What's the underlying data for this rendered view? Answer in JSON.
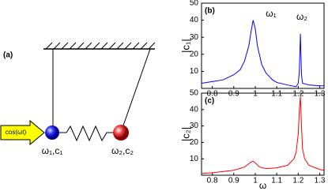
{
  "diagram": {
    "panel_label": "(a)",
    "force_label": "cos(ωt)",
    "mass1_label": "ω₁,c₁",
    "mass2_label": "ω₂,c₂"
  },
  "chart_data": [
    {
      "type": "line",
      "panel_label": "(b)",
      "y_label": "|c₁|",
      "annotations": [
        "ω₁",
        "ω₂"
      ],
      "x": [
        0.75,
        0.8,
        0.85,
        0.9,
        0.93,
        0.95,
        0.97,
        0.98,
        0.99,
        1.0,
        1.01,
        1.03,
        1.05,
        1.08,
        1.1,
        1.15,
        1.19,
        1.2,
        1.205,
        1.21,
        1.215,
        1.22,
        1.25,
        1.3,
        1.32
      ],
      "series": [
        {
          "name": "|c₁|",
          "color": "#0000ff",
          "values": [
            3,
            4,
            5,
            8,
            11,
            16,
            25,
            33,
            40,
            35,
            25,
            14,
            9,
            5,
            3.5,
            2,
            1,
            3,
            10,
            32,
            8,
            3,
            2,
            1.5,
            1.5
          ]
        }
      ],
      "xlim": [
        0.75,
        1.32
      ],
      "ylim": [
        0,
        50
      ],
      "xticks": [
        0.8,
        0.9,
        1,
        1.1,
        1.2,
        1.3
      ],
      "yticks": [
        10,
        20,
        30,
        40,
        50
      ],
      "grid": false
    },
    {
      "type": "line",
      "panel_label": "(c)",
      "y_label": "|c₂|",
      "x_label": "ω",
      "x": [
        0.75,
        0.8,
        0.9,
        0.95,
        0.98,
        0.99,
        1.0,
        1.02,
        1.05,
        1.1,
        1.15,
        1.18,
        1.19,
        1.2,
        1.205,
        1.21,
        1.215,
        1.22,
        1.23,
        1.25,
        1.3,
        1.32
      ],
      "series": [
        {
          "name": "|c₂|",
          "color": "#ff0000",
          "values": [
            1,
            1.5,
            3,
            5,
            8,
            8.5,
            7.5,
            5,
            4,
            4.5,
            6,
            10,
            14,
            25,
            40,
            48,
            30,
            16,
            10,
            6,
            3.5,
            3
          ]
        }
      ],
      "xlim": [
        0.75,
        1.32
      ],
      "ylim": [
        0,
        50
      ],
      "xticks": [
        0.8,
        0.9,
        1,
        1.1,
        1.2,
        1.3
      ],
      "yticks": [
        10,
        20,
        30,
        40,
        50
      ],
      "grid": false
    }
  ]
}
